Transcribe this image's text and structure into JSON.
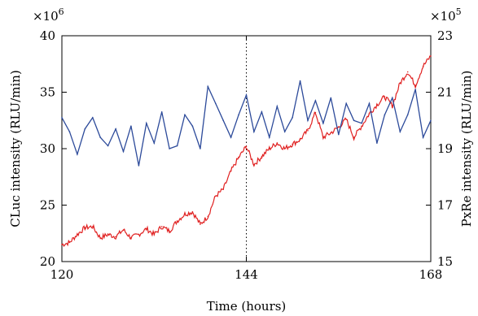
{
  "chart_data": {
    "type": "line",
    "xlabel": "Time (hours)",
    "ylabel_left": "CLuc intensity (RLU/min)",
    "ylabel_right": "PxRe intensity (RLU/min)",
    "x_range": [
      120,
      168
    ],
    "x_ticks": [
      "120",
      "144",
      "168"
    ],
    "ylim_left": [
      20,
      40
    ],
    "y_ticks_left": [
      "20",
      "25",
      "30",
      "35",
      "40"
    ],
    "ylim_right": [
      15,
      23
    ],
    "y_ticks_right": [
      "15",
      "17",
      "19",
      "21",
      "23"
    ],
    "left_multiplier": {
      "base": "×10",
      "exp": "6"
    },
    "right_multiplier": {
      "base": "×10",
      "exp": "5"
    },
    "vline_x": 144,
    "series": [
      {
        "axis": "left",
        "color": "#e02020",
        "x": [
          120,
          121,
          122,
          123,
          124,
          125,
          126,
          127,
          128,
          129,
          130,
          131,
          132,
          133,
          134,
          135,
          136,
          137,
          138,
          139,
          140,
          141,
          142,
          143,
          144,
          145,
          146,
          147,
          148,
          149,
          150,
          151,
          152,
          153,
          154,
          155,
          156,
          157,
          158,
          159,
          160,
          161,
          162,
          163,
          164,
          165,
          166,
          167,
          168
        ],
        "values": [
          21.5,
          21.7,
          22.4,
          23.0,
          23.1,
          22.1,
          22.4,
          22.2,
          22.8,
          22.1,
          22.4,
          22.9,
          22.4,
          23.1,
          22.7,
          23.6,
          24.2,
          24.4,
          23.3,
          24.0,
          25.8,
          26.4,
          28.0,
          29.2,
          30.2,
          28.6,
          29.3,
          30.0,
          30.5,
          30.0,
          30.4,
          30.8,
          31.6,
          33.2,
          31.0,
          31.4,
          31.9,
          32.6,
          31.0,
          32.0,
          33.1,
          33.9,
          34.6,
          33.8,
          35.8,
          36.8,
          35.6,
          37.3,
          38.2
        ]
      },
      {
        "axis": "right",
        "color": "#2c4a9a",
        "x": [
          120,
          121,
          122,
          123,
          124,
          125,
          126,
          127,
          128,
          129,
          130,
          131,
          132,
          133,
          134,
          135,
          136,
          137,
          138,
          139,
          140,
          141,
          142,
          143,
          144,
          145,
          146,
          147,
          148,
          149,
          150,
          151,
          152,
          153,
          154,
          155,
          156,
          157,
          158,
          159,
          160,
          161,
          162,
          163,
          164,
          165,
          166,
          167,
          168
        ],
        "values": [
          20.1,
          19.6,
          18.8,
          19.7,
          20.1,
          19.4,
          19.1,
          19.7,
          18.9,
          19.8,
          18.4,
          19.9,
          19.2,
          20.3,
          19.0,
          19.1,
          20.2,
          19.8,
          19.0,
          21.2,
          20.6,
          20.0,
          19.4,
          20.2,
          20.9,
          19.6,
          20.3,
          19.4,
          20.5,
          19.6,
          20.1,
          21.4,
          20.0,
          20.7,
          19.9,
          20.8,
          19.5,
          20.6,
          20.0,
          19.9,
          20.6,
          19.2,
          20.2,
          20.8,
          19.6,
          20.2,
          21.1,
          19.4,
          20.0
        ]
      }
    ]
  }
}
